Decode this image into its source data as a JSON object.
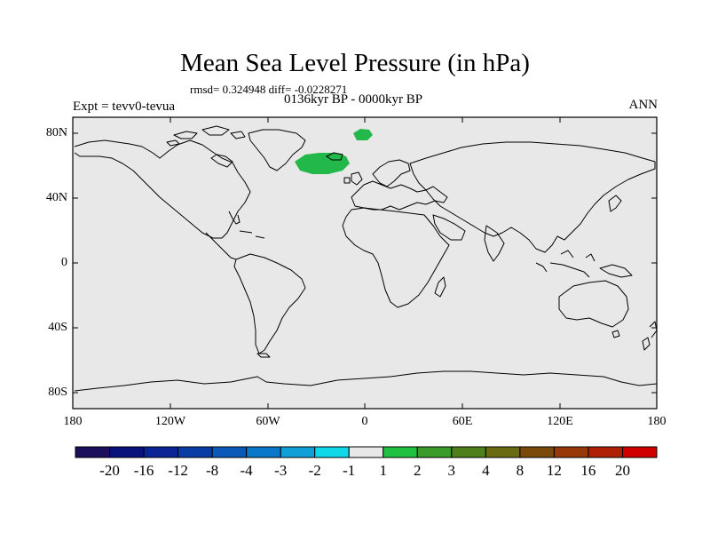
{
  "title": "Mean Sea Level Pressure (in hPa)",
  "stats": "rmsd= 0.324948 diff= -0.0228271",
  "period": "0136kyr BP - 0000kyr BP",
  "experiment": "Expt = tevv0-tevua",
  "season": "ANN",
  "lat_ticks": [
    "80N",
    "40N",
    "0",
    "40S",
    "80S"
  ],
  "lon_ticks": [
    "180",
    "120W",
    "60W",
    "0",
    "60E",
    "120E",
    "180"
  ],
  "colorbar": {
    "labels": [
      "-20",
      "-16",
      "-12",
      "-8",
      "-4",
      "-3",
      "-2",
      "-1",
      "1",
      "2",
      "3",
      "4",
      "8",
      "12",
      "16",
      "20"
    ],
    "colors": [
      "#1c0f5c",
      "#08127a",
      "#0a2496",
      "#0a3ca6",
      "#0a58b8",
      "#0a78c8",
      "#10a0d8",
      "#10d8e8",
      "#e8e8e8",
      "#20c040",
      "#3a9a2a",
      "#4e7f1a",
      "#6a6a12",
      "#7a4a0a",
      "#983808",
      "#b02004",
      "#d00000"
    ]
  },
  "map": {
    "ocean_color": "#e8e8e8",
    "anomaly_color": "#22b84a"
  }
}
